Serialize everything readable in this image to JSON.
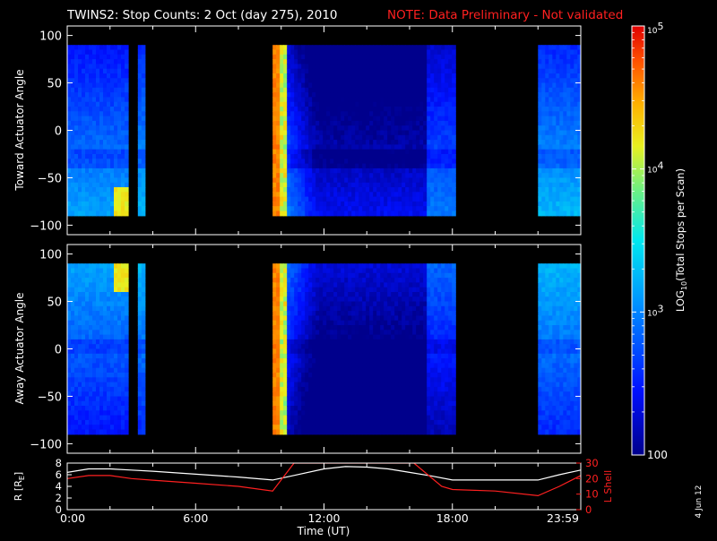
{
  "header": {
    "title": "TWINS2: Stop Counts:  2 Oct (day 275), 2010",
    "note": "NOTE: Data Preliminary - Not validated"
  },
  "side_stamp": "4 Jun 12",
  "colors": {
    "background": "#000000",
    "axis": "#ffffff",
    "note": "#ff2020",
    "lshell": "#ff2020",
    "r_line": "#ffffff"
  },
  "chart_data": [
    {
      "type": "heatmap",
      "ylabel": "Toward Actuator Angle",
      "ylim": [
        -110,
        110
      ],
      "y_ticks": [
        "100",
        "50",
        "0",
        "−50",
        "−100"
      ],
      "y_tick_values": [
        100,
        50,
        0,
        -50,
        -100
      ],
      "xlim": [
        0,
        24
      ],
      "data_extent_angle": [
        -90,
        90
      ],
      "blocks": [
        {
          "t0": 0.0,
          "t1": 2.75,
          "level": 2.8,
          "edge_hot": true
        },
        {
          "t0": 3.3,
          "t1": 3.5,
          "level": 2.9
        },
        {
          "t0": 9.6,
          "t1": 18.0,
          "level": 2.6,
          "hot_start": true
        },
        {
          "t0": 22.0,
          "t1": 24.0,
          "level": 2.9
        }
      ]
    },
    {
      "type": "heatmap",
      "ylabel": "Away Actuator Angle",
      "ylim": [
        -110,
        110
      ],
      "y_ticks": [
        "100",
        "50",
        "0",
        "−50",
        "−100"
      ],
      "y_tick_values": [
        100,
        50,
        0,
        -50,
        -100
      ],
      "xlim": [
        0,
        24
      ],
      "data_extent_angle": [
        -90,
        90
      ],
      "blocks": [
        {
          "t0": 0.0,
          "t1": 2.75,
          "level": 2.8,
          "edge_hot": true
        },
        {
          "t0": 3.3,
          "t1": 3.5,
          "level": 2.9
        },
        {
          "t0": 9.6,
          "t1": 18.0,
          "level": 2.5,
          "hot_start": true
        },
        {
          "t0": 22.0,
          "t1": 24.0,
          "level": 2.9
        }
      ]
    },
    {
      "type": "line",
      "ylabel": "R [R",
      "ylabel_sub": "E",
      "ylabel_end": "]",
      "ylabel_right": "L Shell",
      "ylim": [
        0,
        8
      ],
      "y_ticks": [
        "8",
        "6",
        "4",
        "2",
        "0"
      ],
      "y_tick_values": [
        8,
        6,
        4,
        2,
        0
      ],
      "y2lim": [
        0,
        30
      ],
      "y2_ticks": [
        "30",
        "20",
        "10",
        "0"
      ],
      "y2_tick_values": [
        30,
        20,
        10,
        0
      ],
      "xlabel": "Time (UT)",
      "x_ticks": [
        "0:00",
        "6:00",
        "12:00",
        "18:00",
        "23:59"
      ],
      "x_tick_values": [
        0,
        6,
        12,
        18,
        24
      ],
      "series": [
        {
          "axis": "left",
          "x": [
            0,
            1,
            2,
            3,
            4,
            6,
            8,
            9.6,
            10.5,
            12,
            13,
            14,
            15,
            16,
            17,
            18,
            20,
            22,
            23,
            24
          ],
          "y": [
            6.4,
            7.0,
            7.0,
            6.8,
            6.6,
            6.1,
            5.6,
            5.1,
            5.8,
            7.0,
            7.4,
            7.3,
            7.0,
            6.4,
            5.8,
            5.1,
            5.1,
            5.1,
            6.0,
            6.8
          ]
        },
        {
          "axis": "right",
          "x": [
            0,
            1,
            2,
            3,
            4,
            6,
            8,
            9.6,
            10.6,
            10.7,
            16.1,
            16.2,
            17.5,
            18,
            20,
            22,
            23,
            24
          ],
          "y": [
            20,
            22,
            22,
            20,
            19,
            17,
            15,
            12,
            30,
            30,
            30,
            30,
            15,
            13,
            12,
            9,
            15,
            22
          ]
        }
      ]
    },
    {
      "type": "heatmap",
      "role": "colorbar",
      "label": "LOG",
      "label_sub": "10",
      "label_end": "(Total Stops per Scan)",
      "ticks": [
        {
          "base": "10",
          "exp": "5",
          "value": 5
        },
        {
          "base": "10",
          "exp": "4",
          "value": 4
        },
        {
          "base": "10",
          "exp": "3",
          "value": 3
        },
        {
          "base": "100",
          "exp": "",
          "value": 2
        }
      ],
      "range": [
        2,
        5
      ]
    }
  ]
}
